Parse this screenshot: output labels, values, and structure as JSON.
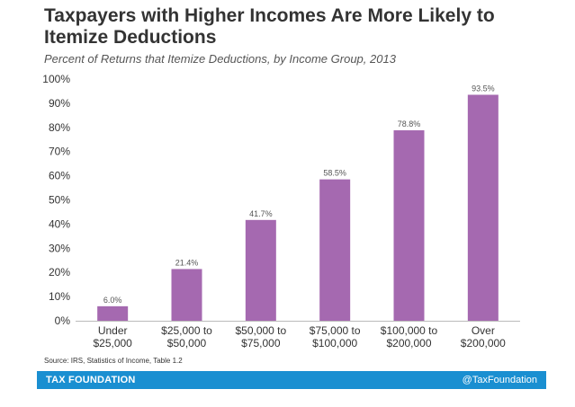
{
  "title": "Taxpayers with Higher Incomes Are More Likely to Itemize Deductions",
  "subtitle": "Percent of Returns that Itemize Deductions, by Income Group, 2013",
  "source": "Source: IRS, Statistics of Income, Table 1.2",
  "footer": {
    "brand": "TAX FOUNDATION",
    "handle": "@TaxFoundation",
    "color": "#1a8fd1"
  },
  "chart_data": {
    "type": "bar",
    "categories": [
      [
        "Under",
        "$25,000"
      ],
      [
        "$25,000 to",
        "$50,000"
      ],
      [
        "$50,000 to",
        "$75,000"
      ],
      [
        "$75,000 to",
        "$100,000"
      ],
      [
        "$100,000 to",
        "$200,000"
      ],
      [
        "Over",
        "$200,000"
      ]
    ],
    "values": [
      6.0,
      21.4,
      41.7,
      58.5,
      78.8,
      93.5
    ],
    "data_labels": [
      "6.0%",
      "21.4%",
      "41.7%",
      "58.5%",
      "78.8%",
      "93.5%"
    ],
    "ylim": [
      0,
      100
    ],
    "yticks": [
      0,
      10,
      20,
      30,
      40,
      50,
      60,
      70,
      80,
      90,
      100
    ],
    "ytick_labels": [
      "0%",
      "10%",
      "20%",
      "30%",
      "40%",
      "50%",
      "60%",
      "70%",
      "80%",
      "90%",
      "100%"
    ],
    "bar_color": "#a569b0",
    "grid": false,
    "legend": "none"
  }
}
